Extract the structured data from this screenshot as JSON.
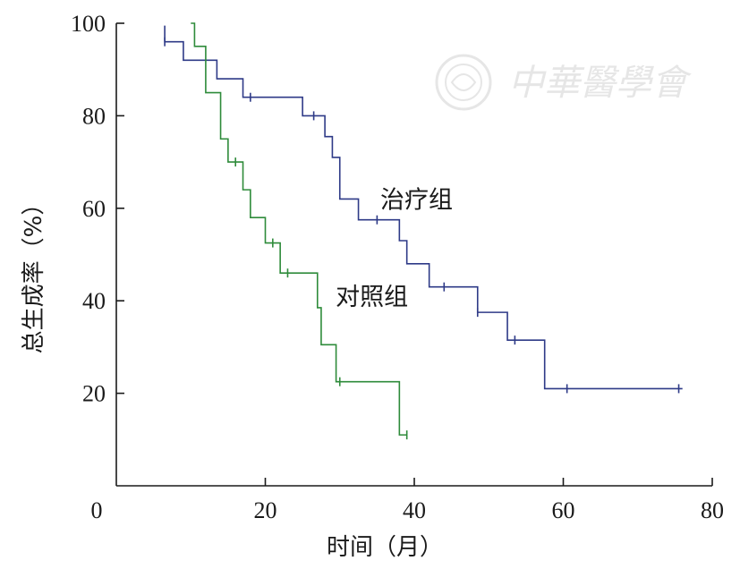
{
  "chart_data": {
    "type": "line",
    "subtype": "kaplan-meier-step",
    "xlabel": "时间（月）",
    "ylabel": "总生成率（%）",
    "xlim": [
      0,
      80
    ],
    "ylim": [
      0,
      100
    ],
    "xticks": [
      0,
      20,
      40,
      60,
      80
    ],
    "yticks": [
      20,
      40,
      60,
      80,
      100
    ],
    "grid": false,
    "watermark": "中華醫學會",
    "series": [
      {
        "name": "治疗组",
        "color": "#2e3a87",
        "steps": [
          [
            6.5,
            96
          ],
          [
            9,
            92
          ],
          [
            13.5,
            88
          ],
          [
            17,
            84
          ],
          [
            25,
            80
          ],
          [
            28,
            75.5
          ],
          [
            29,
            71
          ],
          [
            30,
            62
          ],
          [
            32.5,
            57.5
          ],
          [
            38,
            53
          ],
          [
            39,
            48
          ],
          [
            42,
            43
          ],
          [
            48.5,
            37.5
          ],
          [
            52.5,
            31.5
          ],
          [
            57.5,
            21
          ],
          [
            76,
            21
          ]
        ],
        "censored": [
          [
            6.5,
            96
          ],
          [
            18,
            84
          ],
          [
            26.5,
            80
          ],
          [
            35,
            57.5
          ],
          [
            44,
            43
          ],
          [
            48.5,
            37.5
          ],
          [
            53.5,
            31.5
          ],
          [
            60.5,
            21
          ],
          [
            75.5,
            21
          ]
        ],
        "label_at": [
          34,
          62
        ]
      },
      {
        "name": "对照组",
        "color": "#2e8b3a",
        "steps": [
          [
            10,
            100
          ],
          [
            10.5,
            95
          ],
          [
            12,
            85
          ],
          [
            14,
            75
          ],
          [
            15,
            70
          ],
          [
            17,
            64
          ],
          [
            18,
            58
          ],
          [
            20,
            52.5
          ],
          [
            22,
            46
          ],
          [
            27,
            38.5
          ],
          [
            27.5,
            30.5
          ],
          [
            29.5,
            22.5
          ],
          [
            38,
            11
          ],
          [
            39,
            11
          ]
        ],
        "censored": [
          [
            16,
            70
          ],
          [
            21,
            52.5
          ],
          [
            23,
            46
          ],
          [
            30,
            22.5
          ],
          [
            39,
            11
          ]
        ],
        "label_at": [
          28,
          41
        ]
      }
    ]
  }
}
